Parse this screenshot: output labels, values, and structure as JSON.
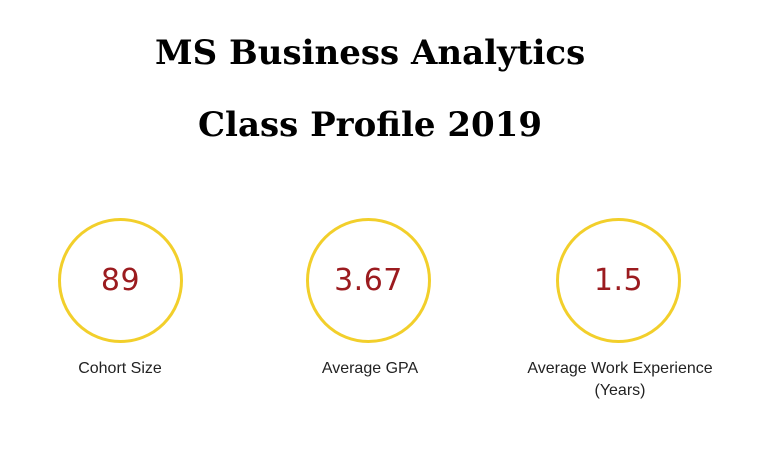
{
  "title": {
    "line1": "MS Business Analytics",
    "line2": "Class Profile 2019"
  },
  "stats": [
    {
      "value": "89",
      "label": "Cohort Size"
    },
    {
      "value": "3.67",
      "label": "Average GPA"
    },
    {
      "value": "1.5",
      "label": "Average Work Experience",
      "label_sub": "(Years)"
    }
  ],
  "colors": {
    "circle_border": "#f2cf2b",
    "value_text": "#9b1b1f",
    "label_text": "#222222",
    "title_text": "#000000"
  }
}
